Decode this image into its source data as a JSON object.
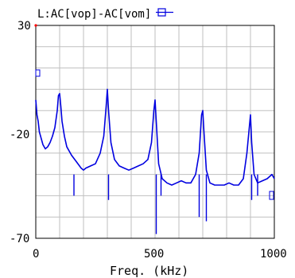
{
  "chart_data": {
    "type": "line",
    "title": "L:AC[vop]-AC[vom]",
    "xlabel": "Freq. (kHz)",
    "ylabel": "",
    "xlim": [
      0,
      1000
    ],
    "ylim": [
      -70,
      30
    ],
    "grid": true,
    "xticks": [
      0,
      500,
      1000
    ],
    "xtick_labels": [
      "0",
      "500",
      "1000"
    ],
    "yticks": [
      30,
      -20,
      -70
    ],
    "ytick_labels": [
      "30",
      "-20",
      "-70"
    ],
    "legend_marker": "square-hline",
    "colors": {
      "series": "#0000e0",
      "grid": "#bfbfbf",
      "axis": "#000000",
      "origin_marker": "#ff0000"
    },
    "series": [
      {
        "name": "",
        "x": [
          0,
          5,
          10,
          15,
          20,
          30,
          40,
          50,
          60,
          70,
          80,
          90,
          95,
          100,
          105,
          110,
          120,
          130,
          150,
          170,
          190,
          200,
          210,
          230,
          250,
          270,
          285,
          295,
          300,
          305,
          315,
          330,
          350,
          370,
          390,
          410,
          430,
          450,
          470,
          485,
          495,
          500,
          505,
          515,
          530,
          550,
          570,
          590,
          610,
          630,
          650,
          670,
          685,
          695,
          700,
          705,
          715,
          730,
          750,
          770,
          790,
          810,
          830,
          850,
          870,
          885,
          895,
          900,
          905,
          915,
          930,
          950,
          970,
          990,
          1000
        ],
        "y": [
          -5,
          -12,
          -15,
          -20,
          -22,
          -26,
          -28,
          -27,
          -25,
          -22,
          -18,
          -10,
          -3,
          -2,
          -8,
          -15,
          -22,
          -27,
          -31,
          -34,
          -37,
          -38,
          -37,
          -36,
          -35,
          -30,
          -22,
          -8,
          0,
          -10,
          -25,
          -33,
          -36,
          -37,
          -38,
          -37,
          -36,
          -35,
          -33,
          -25,
          -10,
          -5,
          -15,
          -35,
          -42,
          -44,
          -45,
          -44,
          -43,
          -44,
          -44,
          -40,
          -30,
          -12,
          -10,
          -20,
          -38,
          -44,
          -45,
          -45,
          -45,
          -44,
          -45,
          -45,
          -42,
          -30,
          -18,
          -12,
          -25,
          -40,
          -44,
          -43,
          -42,
          -40,
          -42
        ]
      }
    ]
  }
}
